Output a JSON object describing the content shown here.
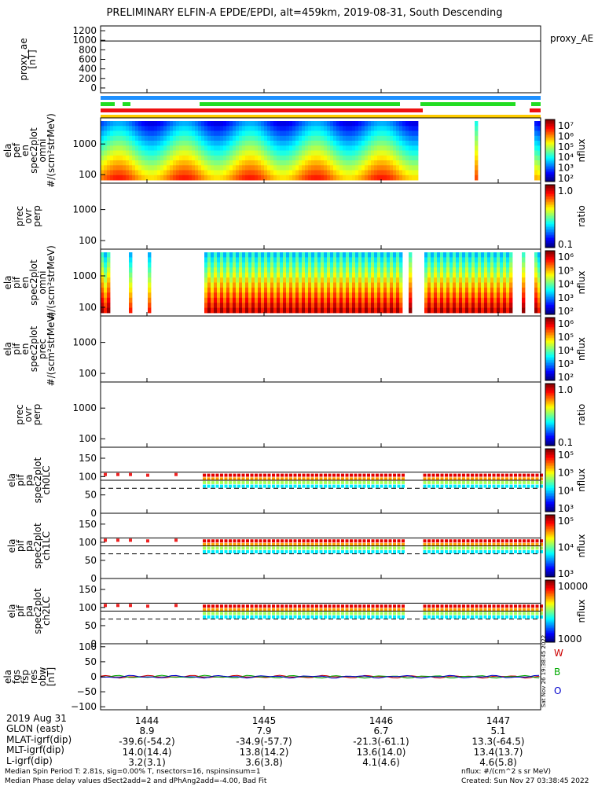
{
  "title": "PRELIMINARY ELFIN-A EPDE/EPDI, alt=459km, 2019-08-31, South Descending",
  "colors": {
    "bar_blue": "#1e90ff",
    "bar_green": "#22dd22",
    "bar_red": "#ee1111",
    "bar_yellow": "#ffcc00"
  },
  "chart_data": [
    {
      "type": "line",
      "panel": "proxy_ae",
      "ylabel": [
        "proxy_ae",
        "[nT]"
      ],
      "legend": "proxy_AE",
      "yticks": [
        "1200",
        "1000",
        "800",
        "600",
        "400",
        "200",
        "0"
      ],
      "ylim": [
        -100,
        1300
      ],
      "series": [
        {
          "values_constant": 985
        }
      ]
    },
    {
      "type": "heatmap",
      "panel": "ela_pef_en_spec2plot_omni",
      "ylabel": [
        "ela",
        "pef",
        "en",
        "spec2plot",
        "omni",
        "#/(scm²strMeV)"
      ],
      "yticks": [
        "1000",
        "100"
      ],
      "scale": "log",
      "colorbar": {
        "ticks": [
          "10⁷",
          "10⁶",
          "10⁵",
          "10⁴",
          "10³",
          "10²"
        ],
        "label": "nflux"
      }
    },
    {
      "type": "heatmap",
      "panel": "prec_ovr_perp_e",
      "ylabel": [
        "prec",
        "ovr",
        "perp"
      ],
      "yticks": [
        "1000",
        "100"
      ],
      "colorbar": {
        "ticks": [
          "1.0",
          "0.1"
        ],
        "label": "ratio"
      }
    },
    {
      "type": "heatmap",
      "panel": "ela_pif_en_spec2plot_omni",
      "ylabel": [
        "ela",
        "pif",
        "en",
        "spec2plot",
        "omni",
        "#/(scm²strMeV)"
      ],
      "yticks": [
        "1000",
        "100"
      ],
      "colorbar": {
        "ticks": [
          "10⁶",
          "10⁵",
          "10⁴",
          "10³",
          "10²"
        ],
        "label": "nflux"
      }
    },
    {
      "type": "heatmap",
      "panel": "ela_pif_en_spec2plot_prec",
      "ylabel": [
        "ela",
        "pif",
        "en",
        "spec2plot",
        "prec",
        "#/(scm²strMeV)"
      ],
      "yticks": [
        "1000",
        "100"
      ],
      "colorbar": {
        "ticks": [
          "10⁶",
          "10⁵",
          "10⁴",
          "10³",
          "10²"
        ],
        "label": "nflux"
      }
    },
    {
      "type": "heatmap",
      "panel": "prec_ovr_perp_i",
      "ylabel": [
        "prec",
        "ovr",
        "perp"
      ],
      "yticks": [
        "1000",
        "100"
      ],
      "colorbar": {
        "ticks": [
          "1.0",
          "0.1"
        ],
        "label": "ratio"
      }
    },
    {
      "type": "heatmap",
      "panel": "ela_pif_pa_spec2plot_ch0LC",
      "ylabel": [
        "ela",
        "pif",
        "pa",
        "spec2plot",
        "ch0LC"
      ],
      "yticks": [
        "150",
        "100",
        "50",
        "0"
      ],
      "ylim": [
        0,
        180
      ],
      "colorbar": {
        "ticks": [
          "10⁵",
          "10⁵",
          "10⁴",
          "10³"
        ],
        "label": "nflux"
      }
    },
    {
      "type": "heatmap",
      "panel": "ela_pif_pa_spec2plot_ch1LC",
      "ylabel": [
        "ela",
        "pif",
        "pa",
        "spec2plot",
        "ch1LC"
      ],
      "yticks": [
        "150",
        "100",
        "50",
        "0"
      ],
      "ylim": [
        0,
        180
      ],
      "colorbar": {
        "ticks": [
          "10⁵",
          "10⁴",
          "10³"
        ],
        "label": "nflux"
      }
    },
    {
      "type": "heatmap",
      "panel": "ela_pif_pa_spec2plot_ch2LC",
      "ylabel": [
        "ela",
        "pif",
        "pa",
        "spec2plot",
        "ch2LC"
      ],
      "yticks": [
        "150",
        "100",
        "50",
        "0"
      ],
      "ylim": [
        0,
        180
      ],
      "colorbar": {
        "ticks": [
          "10000",
          "1000"
        ],
        "label": "nflux"
      }
    },
    {
      "type": "line",
      "panel": "ela_fgs_fsp_res_obw",
      "ylabel": [
        "ela",
        "fgs",
        "fsp",
        "res",
        "obw",
        "[nT]"
      ],
      "yticks": [
        "100",
        "50",
        "0",
        "−50",
        "−100"
      ],
      "ylim": [
        -110,
        110
      ],
      "legend": [
        "W",
        "B",
        "O"
      ],
      "legend_colors": [
        "#cc0000",
        "#00aa00",
        "#0000cc"
      ]
    }
  ],
  "time_axis": {
    "ticks": [
      "1444",
      "1445",
      "1446",
      "1447"
    ],
    "date_label": "2019 Aug 31"
  },
  "ephemeris": [
    {
      "label": "GLON (east)",
      "values": [
        "8.9",
        "7.9",
        "6.7",
        "5.1"
      ]
    },
    {
      "label": "MLAT-igrf(dip)",
      "values": [
        "-39.6(-54.2)",
        "-34.9(-57.7)",
        "-21.3(-61.1)",
        "13.3(-64.5)"
      ]
    },
    {
      "label": "MLT-igrf(dip)",
      "values": [
        "14.0(14.4)",
        "13.8(14.2)",
        "13.6(14.0)",
        "13.4(13.7)"
      ]
    },
    {
      "label": "L-igrf(dip)",
      "values": [
        "3.2(3.1)",
        "3.6(3.8)",
        "4.1(4.6)",
        "4.6(5.8)"
      ]
    }
  ],
  "footer": {
    "left1": "Median Spin Period T: 2.81s, sig=0.00% T, nsectors=16, nspinsinsum=1",
    "left2": "Median Phase delay values dSect2add=2 and dPhAng2add=-4.00, Bad Fit",
    "right1": "nflux: #/(cm^2 s sr MeV)",
    "right2": "Created: Sun Nov 27 03:38:45 2022",
    "stamp": "Sat Nov 26 19:38:45 2022"
  }
}
